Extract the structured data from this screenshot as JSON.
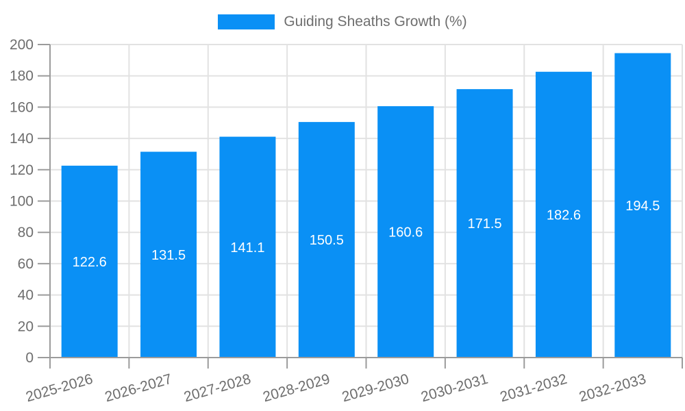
{
  "legend": {
    "label": "Guiding Sheaths Growth (%)"
  },
  "chart_data": {
    "type": "bar",
    "title": "Guiding Sheaths Growth (%)",
    "categories": [
      "2025-2026",
      "2026-2027",
      "2027-2028",
      "2028-2029",
      "2029-2030",
      "2030-2031",
      "2031-2032",
      "2032-2033"
    ],
    "values": [
      122.6,
      131.5,
      141.1,
      150.5,
      160.6,
      171.5,
      182.6,
      194.5
    ],
    "value_labels": [
      "122.6",
      "131.5",
      "141.1",
      "150.5",
      "160.6",
      "171.5",
      "182.6",
      "194.5"
    ],
    "xlabel": "",
    "ylabel": "",
    "ylim": [
      0,
      200
    ],
    "ytick_step": 20,
    "grid": true,
    "legend_position": "top-center",
    "colors": {
      "bar": "#0a90f5",
      "grid_line": "#e2e2e2",
      "axis_line": "#9b9b9b",
      "tick_mark": "#9b9b9b",
      "axis_text": "#6e6e6e",
      "value_label_text": "#ffffff",
      "background": "#ffffff"
    }
  }
}
